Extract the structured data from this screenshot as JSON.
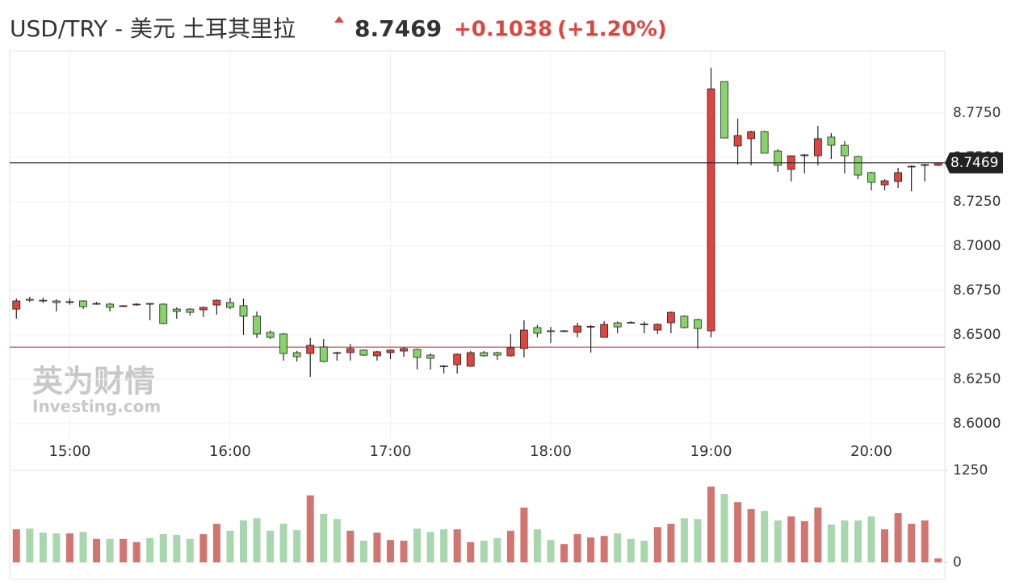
{
  "chart_data": {
    "type": "candlestick",
    "title": "USD/TRY - 美元 土耳其里拉",
    "price": 8.7469,
    "change": "+0.1038",
    "change_pct": "(+1.20%)",
    "watermark": "英为财情",
    "watermark_sub": "Investing.com",
    "reference_line": 8.6431,
    "up_color": "#e0443f",
    "down_color": "#86d46a",
    "categories": [
      null,
      null,
      null,
      null,
      "15:00",
      null,
      null,
      null,
      null,
      null,
      null,
      null,
      null,
      null,
      null,
      null,
      "16:00",
      null,
      null,
      null,
      null,
      null,
      null,
      null,
      null,
      null,
      null,
      null,
      "17:00",
      null,
      null,
      null,
      null,
      null,
      null,
      null,
      null,
      null,
      null,
      null,
      "18:00",
      null,
      null,
      null,
      null,
      null,
      null,
      null,
      null,
      null,
      null,
      null,
      "19:00",
      null,
      null,
      null,
      null,
      null,
      null,
      null,
      null,
      null,
      null,
      null,
      "20:00",
      null,
      null,
      null,
      null,
      null
    ],
    "open": [
      8.6645,
      8.67,
      8.6695,
      8.6691,
      8.6685,
      8.6691,
      8.6675,
      8.6673,
      8.6664,
      8.667,
      8.6677,
      8.6673,
      8.6645,
      8.6645,
      8.6641,
      8.6668,
      8.6682,
      8.6664,
      8.6605,
      8.6514,
      8.6505,
      8.64,
      8.6395,
      8.6432,
      8.64,
      8.64,
      8.6414,
      8.6382,
      8.64,
      8.6409,
      8.6418,
      8.6386,
      8.6325,
      8.6332,
      8.6323,
      8.64,
      8.64,
      8.6382,
      8.6423,
      8.6541,
      8.6523,
      8.6523,
      8.6514,
      8.6545,
      8.6486,
      8.6568,
      8.657,
      8.6561,
      8.6527,
      8.6568,
      8.6605,
      8.6586,
      8.6523,
      8.7927,
      8.7564,
      8.7605,
      8.7645,
      8.7536,
      8.7432,
      8.7514,
      8.7509,
      8.7614,
      8.7568,
      8.7505,
      8.7414,
      8.7345,
      8.7364,
      8.745,
      8.7459,
      8.7455
    ],
    "high": [
      8.6705,
      8.6715,
      8.671,
      8.67,
      8.6705,
      8.6695,
      8.6685,
      8.668,
      8.6668,
      8.6678,
      8.668,
      8.6677,
      8.6655,
      8.665,
      8.6659,
      8.67,
      8.6709,
      8.6705,
      8.6632,
      8.6525,
      8.651,
      8.641,
      8.6482,
      8.6477,
      8.6405,
      8.645,
      8.6418,
      8.641,
      8.6418,
      8.6432,
      8.6423,
      8.6395,
      8.633,
      8.6395,
      8.6409,
      8.6409,
      8.6405,
      8.6505,
      8.6582,
      8.6555,
      8.6545,
      8.6527,
      8.6568,
      8.6555,
      8.6577,
      8.6575,
      8.6577,
      8.6575,
      8.6565,
      8.6632,
      8.661,
      8.6591,
      8.8005,
      8.7927,
      8.7718,
      8.765,
      8.765,
      8.7545,
      8.7509,
      8.7518,
      8.7677,
      8.7636,
      8.7591,
      8.7509,
      8.7418,
      8.7377,
      8.7441,
      8.7455,
      8.7464,
      8.7473
    ],
    "low": [
      8.6591,
      8.6685,
      8.668,
      8.6632,
      8.667,
      8.6645,
      8.667,
      8.6632,
      8.666,
      8.6664,
      8.6582,
      8.656,
      8.6591,
      8.6609,
      8.66,
      8.6614,
      8.6645,
      8.65,
      8.6482,
      8.6477,
      8.6355,
      8.635,
      8.6264,
      8.6345,
      8.6355,
      8.6355,
      8.6382,
      8.6355,
      8.6364,
      8.6377,
      8.6305,
      8.6305,
      8.6282,
      8.6282,
      8.632,
      8.6377,
      8.6359,
      8.6377,
      8.6373,
      8.6486,
      8.6455,
      8.6518,
      8.6486,
      8.64,
      8.6486,
      8.6509,
      8.6565,
      8.6509,
      8.6505,
      8.6509,
      8.6536,
      8.6423,
      8.6486,
      8.7609,
      8.7459,
      8.7455,
      8.7523,
      8.7418,
      8.7364,
      8.7409,
      8.7455,
      8.7491,
      8.7409,
      8.7377,
      8.7314,
      8.7314,
      8.7327,
      8.7309,
      8.7364,
      8.745
    ],
    "close": [
      8.6691,
      8.6695,
      8.6693,
      8.6682,
      8.6687,
      8.6659,
      8.6677,
      8.6655,
      8.6664,
      8.6673,
      8.6675,
      8.6564,
      8.6632,
      8.6627,
      8.6655,
      8.6695,
      8.6655,
      8.6605,
      8.6505,
      8.6486,
      8.6395,
      8.6377,
      8.6441,
      8.635,
      8.6398,
      8.6423,
      8.6386,
      8.6405,
      8.6414,
      8.6423,
      8.6373,
      8.6368,
      8.6323,
      8.6391,
      8.64,
      8.6382,
      8.6386,
      8.6427,
      8.6527,
      8.6509,
      8.652,
      8.6523,
      8.655,
      8.6548,
      8.6559,
      8.6545,
      8.6568,
      8.6559,
      8.6559,
      8.6627,
      8.6541,
      8.6536,
      8.7886,
      8.7609,
      8.7623,
      8.7645,
      8.7523,
      8.7455,
      8.7509,
      8.7514,
      8.7605,
      8.7568,
      8.7509,
      8.74,
      8.7359,
      8.7368,
      8.7414,
      8.745,
      8.7459,
      8.7469
    ],
    "ylim": [
      8.595,
      8.81
    ],
    "yticks": [
      {
        "value": 8.6,
        "label": "8.6000"
      },
      {
        "value": 8.625,
        "label": "8.6250"
      },
      {
        "value": 8.65,
        "label": "8.6500"
      },
      {
        "value": 8.675,
        "label": "8.6750"
      },
      {
        "value": 8.7,
        "label": "8.7000"
      },
      {
        "value": 8.725,
        "label": "8.7250"
      },
      {
        "value": 8.75,
        "label": "8.7500"
      },
      {
        "value": 8.775,
        "label": "8.7750"
      }
    ],
    "volume": {
      "up_color": "#d27470",
      "down_color": "#a8d6ad",
      "values": [
        450,
        460,
        405,
        395,
        395,
        415,
        320,
        320,
        320,
        275,
        330,
        385,
        375,
        320,
        385,
        525,
        430,
        570,
        600,
        430,
        525,
        440,
        910,
        660,
        590,
        430,
        295,
        405,
        305,
        295,
        460,
        415,
        450,
        450,
        275,
        295,
        330,
        430,
        745,
        450,
        305,
        250,
        385,
        340,
        360,
        395,
        320,
        295,
        480,
        525,
        600,
        590,
        1030,
        930,
        820,
        725,
        700,
        570,
        625,
        560,
        745,
        515,
        570,
        570,
        625,
        450,
        670,
        525,
        570,
        55
      ],
      "ylim": [
        0,
        1250
      ],
      "yticks": [
        0,
        1250
      ]
    }
  }
}
